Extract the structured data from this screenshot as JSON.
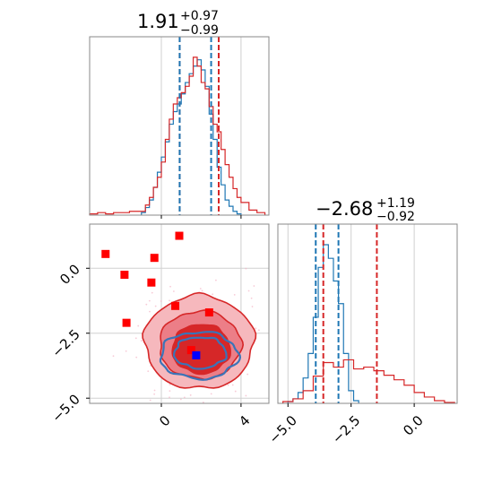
{
  "chart_data": [
    {
      "type": "histogram",
      "panel": "marginal-x",
      "title": {
        "base": "1.91",
        "sup": "+0.97",
        "sub": "−0.99"
      },
      "x_range": [
        -3.6,
        5.4
      ],
      "grid": true,
      "x_gridlines": [
        0,
        4
      ],
      "series": [
        {
          "color": "#1f77b4",
          "x": [
            -1.0,
            -0.8,
            -0.6,
            -0.4,
            -0.2,
            0.0,
            0.2,
            0.4,
            0.6,
            0.8,
            1.0,
            1.2,
            1.4,
            1.6,
            1.8,
            2.0,
            2.2,
            2.4,
            2.6,
            2.8,
            3.0,
            3.2,
            3.4,
            3.6,
            3.8
          ],
          "counts": [
            2,
            6,
            12,
            22,
            34,
            46,
            58,
            72,
            82,
            88,
            96,
            105,
            112,
            118,
            123,
            115,
            102,
            80,
            60,
            38,
            24,
            12,
            7,
            3,
            1
          ]
        },
        {
          "color": "#d62728",
          "x": [
            -3.6,
            -3.2,
            -2.8,
            -2.4,
            -2.0,
            -1.6,
            -1.2,
            -0.8,
            -0.6,
            -0.4,
            -0.2,
            0.0,
            0.2,
            0.4,
            0.6,
            0.8,
            1.0,
            1.2,
            1.4,
            1.6,
            1.8,
            2.0,
            2.2,
            2.4,
            2.6,
            2.8,
            3.0,
            3.2,
            3.4,
            3.6,
            3.8,
            4.0,
            4.4,
            4.8
          ],
          "counts": [
            1,
            2,
            1,
            2,
            2,
            3,
            3,
            8,
            14,
            22,
            30,
            42,
            60,
            76,
            88,
            93,
            97,
            102,
            110,
            125,
            118,
            105,
            100,
            86,
            72,
            66,
            52,
            40,
            30,
            21,
            14,
            10,
            4,
            2
          ]
        }
      ],
      "markers": [
        {
          "x": 0.92,
          "color": "#d62728",
          "style": "dashed"
        },
        {
          "x": 0.92,
          "color": "#1f77b4",
          "style": "dashed"
        },
        {
          "x": 2.5,
          "color": "#1f77b4",
          "style": "dashed"
        },
        {
          "x": 2.88,
          "color": "#d62728",
          "style": "dashed"
        }
      ]
    },
    {
      "type": "contour",
      "panel": "joint",
      "x_range": [
        -3.6,
        5.4
      ],
      "y_range": [
        -5.2,
        1.7
      ],
      "grid": true,
      "x_ticks": [
        0,
        4
      ],
      "x_tick_labels": [
        "0",
        "4"
      ],
      "y_ticks": [
        0.0,
        -2.5,
        -5.0
      ],
      "y_tick_labels": [
        "0.0",
        "−2.5",
        "−5.0"
      ],
      "red_contours": [
        {
          "cx": 1.9,
          "cy": -2.85,
          "rx": 2.75,
          "ry": 1.8,
          "color": "#f6b8bd"
        },
        {
          "cx": 1.95,
          "cy": -2.95,
          "rx": 2.05,
          "ry": 1.3,
          "color": "#ec7e87"
        },
        {
          "cx": 2.0,
          "cy": -3.1,
          "rx": 1.45,
          "ry": 0.95,
          "color": "#d62728"
        }
      ],
      "blue_contours": [
        {
          "cx": 1.9,
          "cy": -3.35,
          "rx": 1.95,
          "ry": 0.9
        },
        {
          "cx": 1.95,
          "cy": -3.25,
          "rx": 1.3,
          "ry": 0.6
        }
      ],
      "red_squares": [
        {
          "x": -2.8,
          "y": 0.55
        },
        {
          "x": -1.85,
          "y": -0.25
        },
        {
          "x": -0.35,
          "y": 0.4
        },
        {
          "x": 0.9,
          "y": 1.25
        },
        {
          "x": -0.5,
          "y": -0.55
        },
        {
          "x": -1.75,
          "y": -2.1
        },
        {
          "x": 0.7,
          "y": -1.45
        },
        {
          "x": 2.4,
          "y": -1.7
        },
        {
          "x": 1.5,
          "y": -3.15
        }
      ],
      "blue_square": {
        "x": 1.75,
        "y": -3.35
      }
    },
    {
      "type": "histogram",
      "panel": "marginal-y",
      "title": {
        "base": "−2.68",
        "sup": "+1.19",
        "sub": "−0.92"
      },
      "x_range": [
        -5.4,
        1.7
      ],
      "grid": true,
      "x_ticks": [
        -5.0,
        -2.5,
        0.0
      ],
      "x_tick_labels": [
        "−5.0",
        "−2.5",
        "0.0"
      ],
      "series": [
        {
          "color": "#1f77b4",
          "x": [
            -5.0,
            -4.8,
            -4.6,
            -4.4,
            -4.2,
            -4.0,
            -3.8,
            -3.6,
            -3.4,
            -3.2,
            -3.0,
            -2.8,
            -2.6,
            -2.4
          ],
          "counts": [
            2,
            5,
            12,
            28,
            55,
            95,
            150,
            175,
            160,
            135,
            110,
            55,
            14,
            3
          ]
        },
        {
          "color": "#d62728",
          "x": [
            -5.2,
            -4.8,
            -4.4,
            -4.0,
            -3.6,
            -3.2,
            -2.8,
            -2.4,
            -2.0,
            -1.6,
            -1.2,
            -0.8,
            -0.4,
            0.0,
            0.4,
            0.8,
            1.2
          ],
          "counts": [
            2,
            5,
            14,
            30,
            45,
            40,
            48,
            38,
            40,
            36,
            31,
            26,
            20,
            12,
            7,
            3,
            1
          ]
        }
      ],
      "markers": [
        {
          "x": -3.9,
          "color": "#1f77b4",
          "style": "dashed"
        },
        {
          "x": -3.6,
          "color": "#d62728",
          "style": "dashed"
        },
        {
          "x": -3.0,
          "color": "#1f77b4",
          "style": "dashed"
        },
        {
          "x": -1.48,
          "color": "#d62728",
          "style": "dashed"
        }
      ]
    }
  ]
}
